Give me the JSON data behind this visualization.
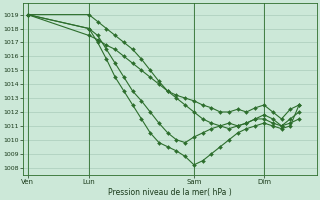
{
  "background_color": "#cce8d8",
  "grid_color": "#aaccbb",
  "line_color": "#2d6e2d",
  "xlabel": "Pression niveau de la mer( hPa )",
  "ylim": [
    1007.5,
    1019.8
  ],
  "yticks": [
    1008,
    1009,
    1010,
    1011,
    1012,
    1013,
    1014,
    1015,
    1016,
    1017,
    1018,
    1019
  ],
  "xtick_labels": [
    "Ven",
    "Lun",
    "Sam",
    "Dim"
  ],
  "xtick_positions": [
    0,
    7,
    19,
    27
  ],
  "xlim": [
    -0.5,
    33
  ],
  "series_x": [
    [
      0,
      7,
      8,
      9,
      10,
      11,
      12,
      13,
      14,
      15,
      16,
      17,
      18,
      19,
      20,
      21,
      22,
      23,
      24,
      25,
      26,
      27,
      28,
      29,
      30,
      31
    ],
    [
      0,
      7,
      8,
      9,
      10,
      11,
      12,
      13,
      14,
      15,
      16,
      17,
      18,
      19,
      20,
      21,
      22,
      23,
      24,
      25,
      26,
      27,
      28,
      29,
      30,
      31
    ],
    [
      0,
      7,
      8,
      9,
      10,
      11,
      12,
      13,
      14,
      15,
      16,
      17,
      18,
      19,
      20,
      21,
      22,
      23,
      24,
      25,
      26,
      27,
      28,
      29,
      30,
      31
    ],
    [
      0,
      7,
      8,
      9,
      10,
      11,
      12,
      13,
      14,
      15,
      16,
      17,
      18,
      19,
      20,
      21,
      22,
      23,
      24,
      25,
      26,
      27,
      28,
      29,
      30,
      31
    ]
  ],
  "series_y": [
    [
      1019.0,
      1017.5,
      1017.2,
      1016.8,
      1016.5,
      1016.0,
      1015.5,
      1015.0,
      1014.5,
      1014.0,
      1013.5,
      1013.2,
      1013.0,
      1012.8,
      1012.5,
      1012.3,
      1012.0,
      1012.0,
      1012.2,
      1012.0,
      1012.3,
      1012.5,
      1012.0,
      1011.5,
      1012.2,
      1012.5
    ],
    [
      1019.0,
      1019.0,
      1018.5,
      1018.0,
      1017.5,
      1017.0,
      1016.5,
      1015.8,
      1015.0,
      1014.2,
      1013.5,
      1013.0,
      1012.5,
      1012.0,
      1011.5,
      1011.2,
      1011.0,
      1010.8,
      1011.0,
      1011.2,
      1011.5,
      1011.5,
      1011.2,
      1011.0,
      1011.2,
      1011.5
    ],
    [
      1019.0,
      1018.0,
      1017.5,
      1016.5,
      1015.5,
      1014.5,
      1013.5,
      1012.8,
      1012.0,
      1011.2,
      1010.5,
      1010.0,
      1009.8,
      1010.2,
      1010.5,
      1010.8,
      1011.0,
      1011.2,
      1011.0,
      1011.2,
      1011.5,
      1011.8,
      1011.5,
      1011.0,
      1011.5,
      1012.0
    ],
    [
      1019.0,
      1018.0,
      1017.0,
      1015.8,
      1014.5,
      1013.5,
      1012.5,
      1011.5,
      1010.5,
      1009.8,
      1009.5,
      1009.2,
      1008.8,
      1008.2,
      1008.5,
      1009.0,
      1009.5,
      1010.0,
      1010.5,
      1010.8,
      1011.0,
      1011.2,
      1011.0,
      1010.8,
      1011.0,
      1012.5
    ]
  ]
}
